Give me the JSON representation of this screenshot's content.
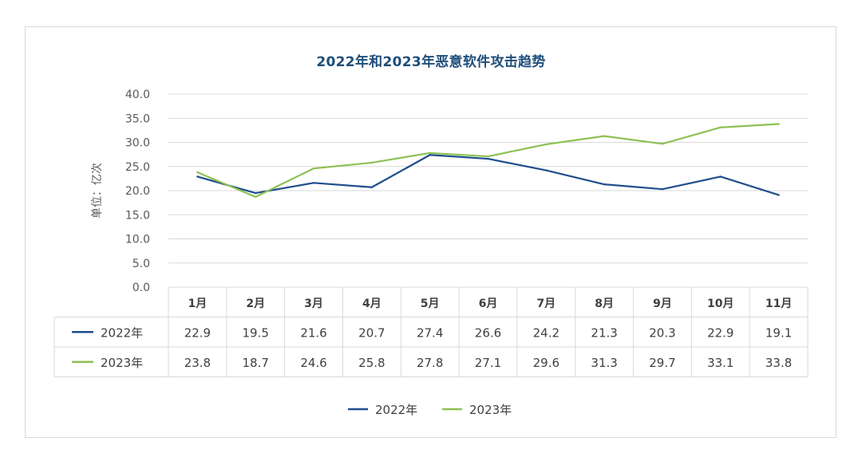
{
  "chart_data": {
    "type": "line",
    "title": "2022年和2023年恶意软件攻击趋势",
    "ylabel": "单位：亿次",
    "xlabel": "",
    "ylim": [
      0,
      40
    ],
    "y_ticks": [
      "0.0",
      "5.0",
      "10.0",
      "15.0",
      "20.0",
      "25.0",
      "30.0",
      "35.0",
      "40.0"
    ],
    "categories": [
      "1月",
      "2月",
      "3月",
      "4月",
      "5月",
      "6月",
      "7月",
      "8月",
      "9月",
      "10月",
      "11月"
    ],
    "series": [
      {
        "name": "2022年",
        "color": "#1f4e8c",
        "values": [
          22.9,
          19.5,
          21.6,
          20.7,
          27.4,
          26.6,
          24.2,
          21.3,
          20.3,
          22.9,
          19.1
        ],
        "labels": [
          "22.9",
          "19.5",
          "21.6",
          "20.7",
          "27.4",
          "26.6",
          "24.2",
          "21.3",
          "20.3",
          "22.9",
          "19.1"
        ]
      },
      {
        "name": "2023年",
        "color": "#8dc153",
        "values": [
          23.8,
          18.7,
          24.6,
          25.8,
          27.8,
          27.1,
          29.6,
          31.3,
          29.7,
          33.1,
          33.8
        ],
        "labels": [
          "23.8",
          "18.7",
          "24.6",
          "25.8",
          "27.8",
          "27.1",
          "29.6",
          "31.3",
          "29.7",
          "33.1",
          "33.8"
        ]
      }
    ],
    "legend_position": "bottom",
    "data_table": true,
    "grid": true
  }
}
